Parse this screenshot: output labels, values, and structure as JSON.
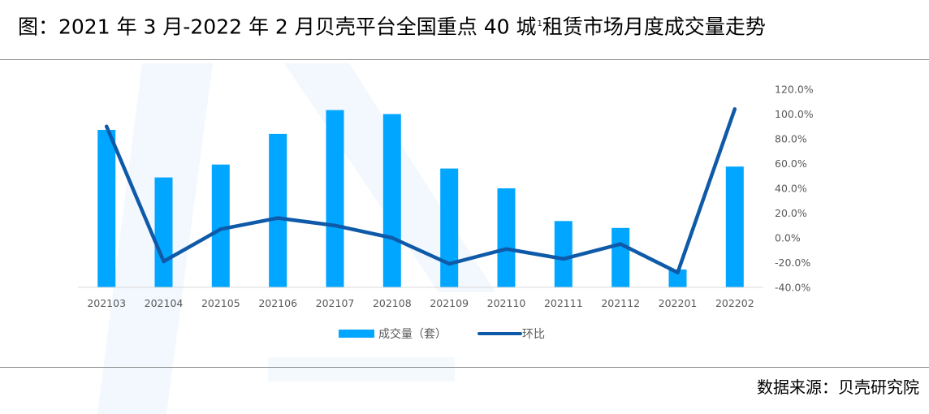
{
  "header": {
    "title_main": "图：2021 年 3 月-2022 年 2 月贝壳平台全国重点 40 城",
    "title_sup": "1",
    "title_rest": "租赁市场月度成交量走势"
  },
  "footer": {
    "source": "数据来源：贝壳研究院"
  },
  "chart_data": {
    "type": "bar",
    "categories": [
      "202103",
      "202104",
      "202105",
      "202106",
      "202107",
      "202108",
      "202109",
      "202110",
      "202111",
      "202112",
      "202201",
      "202202"
    ],
    "series": [
      {
        "name": "成交量（套）",
        "kind": "bar",
        "axis": "left",
        "color": "#00a6ff",
        "values": [
          79.5,
          55.5,
          62,
          77.5,
          89.5,
          87.5,
          60,
          50,
          33.5,
          30,
          9,
          61
        ]
      },
      {
        "name": "环比",
        "kind": "line",
        "axis": "right",
        "color": "#0f5aa8",
        "values": [
          90,
          -19,
          7,
          16,
          10,
          0,
          -21,
          -9,
          -17,
          -5,
          -28,
          104
        ]
      }
    ],
    "left_axis": {
      "ylim": [
        0,
        100
      ],
      "tick_labels_shown": false
    },
    "right_axis": {
      "ylim": [
        -40,
        120
      ],
      "ticks": [
        120,
        100,
        80,
        60,
        40,
        20,
        0,
        -20,
        -40
      ],
      "tick_labels": [
        "120.0%",
        "100.0%",
        "80.0%",
        "60.0%",
        "40.0%",
        "20.0%",
        "0.0%",
        "-20.0%",
        "-40.0%"
      ]
    },
    "legend_position": "bottom-center",
    "grid": false
  }
}
